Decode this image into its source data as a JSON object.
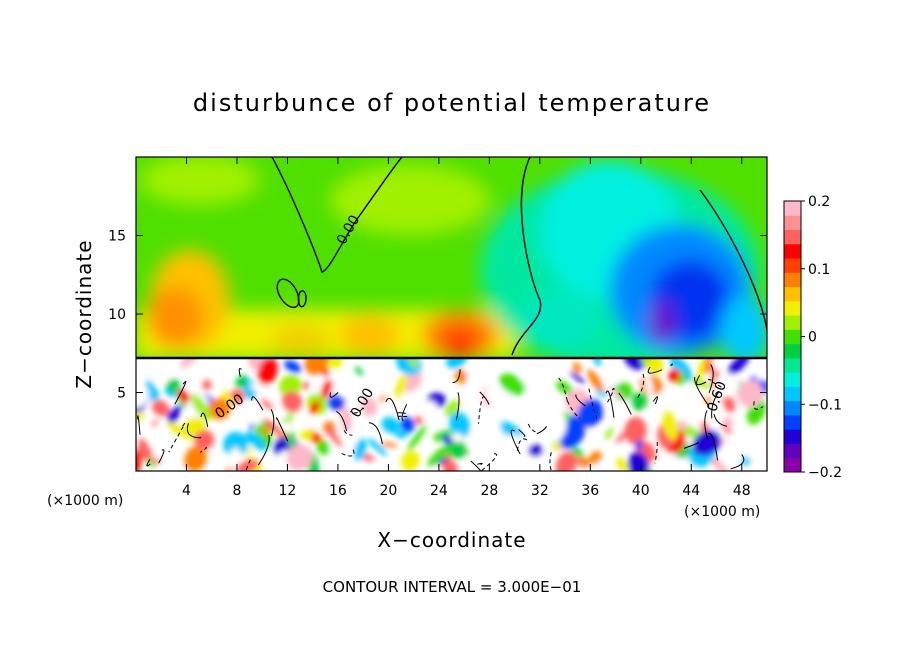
{
  "chart_data": {
    "type": "heatmap",
    "title": "disturbunce of potential temperature",
    "xlabel": "X−coordinate",
    "ylabel": "Z−coordinate",
    "x_unit": "(×1000 m)",
    "z_unit": "(×1000 m)",
    "xlim": [
      0,
      50
    ],
    "ylim": [
      0,
      20
    ],
    "x_ticks": [
      "4",
      "8",
      "12",
      "16",
      "20",
      "24",
      "28",
      "32",
      "36",
      "40",
      "44",
      "48"
    ],
    "x_tick_values": [
      4,
      8,
      12,
      16,
      20,
      24,
      28,
      32,
      36,
      40,
      44,
      48
    ],
    "y_ticks": [
      "5",
      "10",
      "15"
    ],
    "y_tick_values": [
      5,
      10,
      15
    ],
    "colorbar": {
      "range": [
        -0.2,
        0.2
      ],
      "ticks": [
        "0.2",
        "0.1",
        "0",
        "−0.1",
        "−0.2"
      ],
      "tick_values": [
        0.2,
        0.1,
        0,
        -0.1,
        -0.2
      ],
      "colors": [
        "#8b00a8",
        "#6000c0",
        "#2400d8",
        "#0040ff",
        "#0088ff",
        "#00c8ff",
        "#00f0e0",
        "#00e890",
        "#00d040",
        "#40e000",
        "#a0f000",
        "#f0f000",
        "#ffc000",
        "#ff8000",
        "#ff4000",
        "#ff0000",
        "#ff6060",
        "#ff9090",
        "#ffb8c8"
      ]
    },
    "contour_labels": [
      "0.00",
      "0.00",
      "0.00",
      "0.60"
    ],
    "contour_interval_text": "CONTOUR INTERVAL = 3.000E−01",
    "grid": false
  }
}
